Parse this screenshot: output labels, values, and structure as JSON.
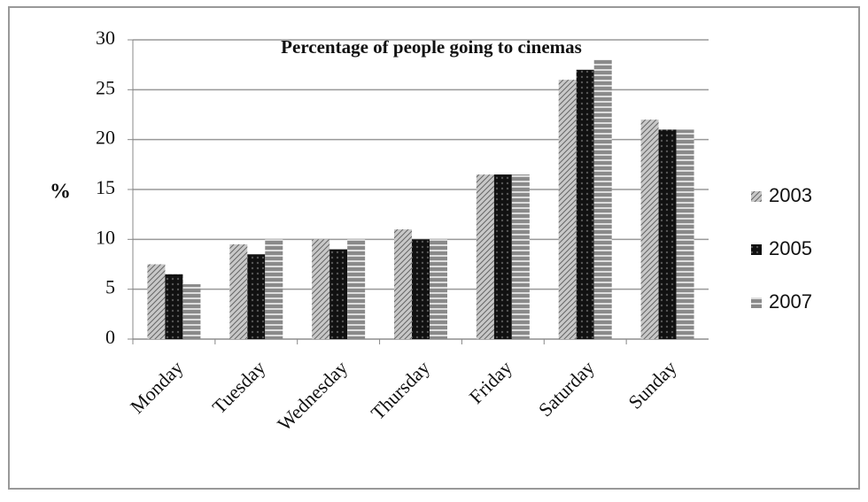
{
  "chart_data": {
    "type": "bar",
    "title": "Percentage of people going to cinemas",
    "y_label": "%",
    "categories": [
      "Monday",
      "Tuesday",
      "Wednesday",
      "Thursday",
      "Friday",
      "Saturday",
      "Sunday"
    ],
    "series": [
      {
        "name": "2003",
        "color": "#c8c8c8",
        "values": [
          7.5,
          9.5,
          10,
          11,
          16.5,
          26,
          22
        ]
      },
      {
        "name": "2005",
        "color": "#111111",
        "values": [
          6.5,
          8.5,
          9,
          10,
          16.5,
          27,
          21
        ]
      },
      {
        "name": "2007",
        "color": "#8a8a8a",
        "values": [
          5.5,
          10,
          10,
          10,
          16.5,
          28,
          21
        ]
      }
    ],
    "ylim": [
      0,
      30
    ],
    "yticks": [
      0,
      5,
      10,
      15,
      20,
      25,
      30
    ],
    "grid": true,
    "legend": "right"
  }
}
